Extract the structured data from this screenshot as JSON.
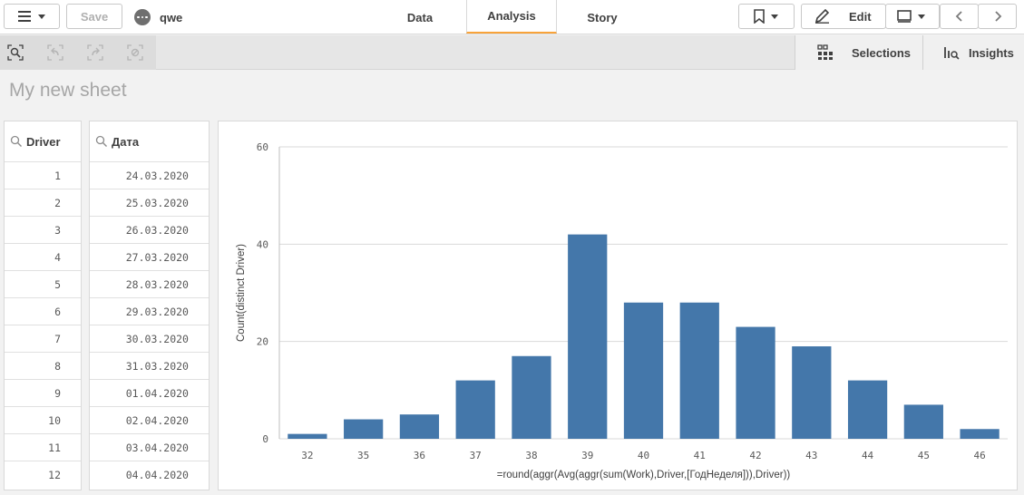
{
  "toolbar": {
    "menu_icon": "hamburger-menu-icon",
    "save_label": "Save",
    "app_name": "qwe",
    "tabs": [
      {
        "label": "Data"
      },
      {
        "label": "Analysis"
      },
      {
        "label": "Story"
      }
    ],
    "bookmark_icon": "bookmark-icon",
    "edit_label": "Edit",
    "edit_icon": "pencil-icon",
    "accent": "#f8a33a"
  },
  "subtoolbar": {
    "tool_icons": [
      "smart-search-icon",
      "step-back-icon",
      "step-forward-icon",
      "clear-selections-icon"
    ],
    "selections_label": "Selections",
    "insights_label": "Insights"
  },
  "sheet": {
    "title": "My new sheet"
  },
  "driver_pane": {
    "title": "Driver",
    "rows": [
      "1",
      "2",
      "3",
      "4",
      "5",
      "6",
      "7",
      "8",
      "9",
      "10",
      "11",
      "12"
    ]
  },
  "date_pane": {
    "title": "Дата",
    "rows": [
      "24.03.2020",
      "25.03.2020",
      "26.03.2020",
      "27.03.2020",
      "28.03.2020",
      "29.03.2020",
      "30.03.2020",
      "31.03.2020",
      "01.04.2020",
      "02.04.2020",
      "03.04.2020",
      "04.04.2020"
    ]
  },
  "chart_data": {
    "type": "bar",
    "categories": [
      "32",
      "35",
      "36",
      "37",
      "38",
      "39",
      "40",
      "41",
      "42",
      "43",
      "44",
      "45",
      "46"
    ],
    "values": [
      1,
      4,
      5,
      12,
      17,
      42,
      28,
      28,
      23,
      19,
      12,
      7,
      2
    ],
    "xlabel": "=round(aggr(Avg(aggr(sum(Work),Driver,[ГодНеделя])),Driver))",
    "ylabel": "Count(distinct Driver)",
    "ylim": [
      0,
      60
    ],
    "yticks": [
      "0",
      "20",
      "40",
      "60"
    ],
    "grid": true,
    "bar_color": "#4477aa"
  }
}
